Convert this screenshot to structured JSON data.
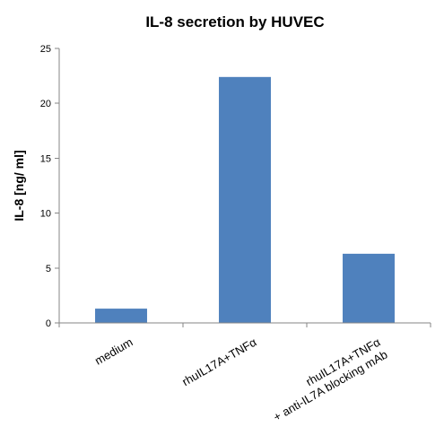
{
  "chart_data": {
    "type": "bar",
    "title": "IL-8 secretion by HUVEC",
    "xlabel": "",
    "ylabel": "IL-8 [ng/ ml]",
    "ylim": [
      0,
      25
    ],
    "yticks": [
      0,
      5,
      10,
      15,
      20,
      25
    ],
    "categories": [
      [
        "medium"
      ],
      [
        "rhuIL17A+TNFα"
      ],
      [
        "rhuIL17A+TNFα",
        "+ anti-IL7A blocking mAb"
      ]
    ],
    "values": [
      1.3,
      22.4,
      6.3
    ],
    "bar_color": "#4f81bd",
    "axis_color": "#868686",
    "grid": false,
    "legend": "none"
  }
}
